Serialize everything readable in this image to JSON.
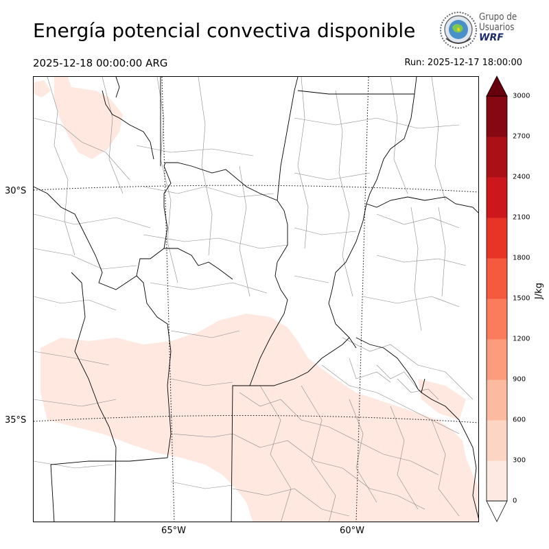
{
  "title": "Energía potencial convectiva disponible",
  "valid_time": "2025-12-18 00:00:00 ARG",
  "run_time": "Run: 2025-12-17 18:00:00",
  "logo": {
    "line1": "Grupo de",
    "line2": "Usuarios",
    "line3": "WRF"
  },
  "map": {
    "lat_labels": [
      "30°S",
      "35°S"
    ],
    "lon_labels": [
      "65°W",
      "60°W"
    ],
    "field_color": "#fee8e0",
    "border_color": "#000000",
    "department_color": "#888888"
  },
  "colorbar": {
    "unit": "J/kg",
    "ticks": [
      "0",
      "300",
      "600",
      "900",
      "1200",
      "1500",
      "1800",
      "2100",
      "2400",
      "2700",
      "3000"
    ],
    "levels": [
      0,
      300,
      600,
      900,
      1200,
      1500,
      1800,
      2100,
      2400,
      2700,
      3000
    ],
    "colors": [
      "#fee9e2",
      "#fcd5c4",
      "#fcbaa0",
      "#fc9c7d",
      "#fb7c5c",
      "#f55a3f",
      "#e83327",
      "#cc181d",
      "#ab1016",
      "#860812"
    ],
    "extend": "both",
    "under_color": "#ffffff",
    "over_color": "#67000d"
  }
}
